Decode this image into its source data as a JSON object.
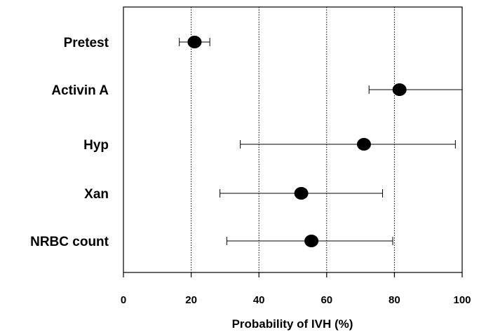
{
  "chart_data": {
    "type": "scatter",
    "orientation": "horizontal",
    "title": "",
    "xlabel": "Probability of IVH (%)",
    "ylabel": "",
    "xlim": [
      0,
      100
    ],
    "xticks": [
      "0",
      "20",
      "40",
      "60",
      "80",
      "100"
    ],
    "grid": "vertical dotted lines at 20, 40, 60, 80",
    "categories": [
      "Pretest",
      "Activin A",
      "Hyp",
      "Xan",
      "NRBC count"
    ],
    "values": [
      21,
      81.5,
      71,
      52.5,
      55.5
    ],
    "error_low": [
      16.5,
      72.5,
      34.5,
      28.5,
      30.5
    ],
    "error_high": [
      25.5,
      100,
      98,
      76.5,
      79.5
    ],
    "colors": {
      "marker": "#000000",
      "grid": "#000000"
    }
  }
}
